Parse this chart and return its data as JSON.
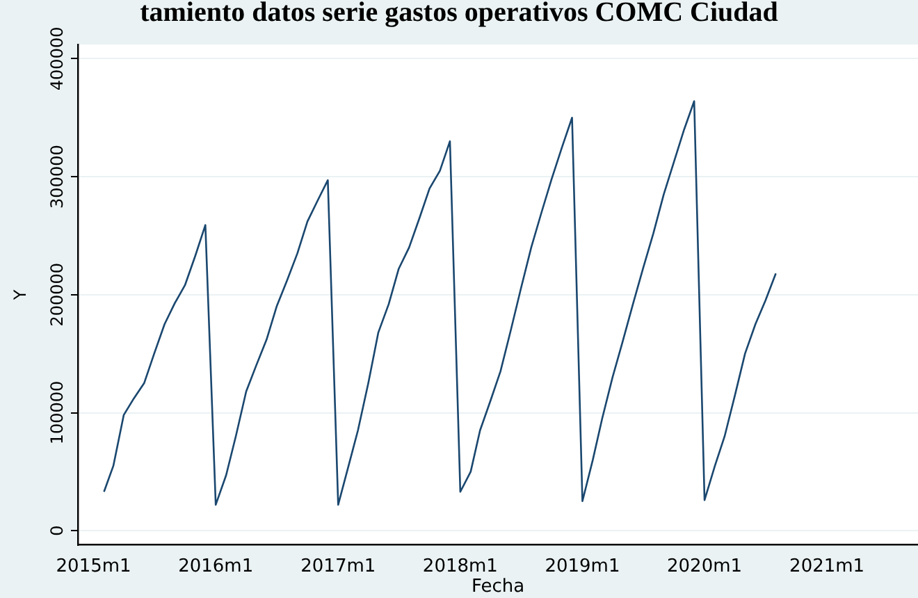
{
  "chart_data": {
    "type": "line",
    "title": "tamiento datos serie gastos operativos COMC Ciudad",
    "xlabel": "Fecha",
    "ylabel": "Y",
    "x": [
      "2015-02",
      "2015-03",
      "2015-04",
      "2015-05",
      "2015-06",
      "2015-07",
      "2015-08",
      "2015-09",
      "2015-10",
      "2015-11",
      "2015-12",
      "2016-01",
      "2016-02",
      "2016-03",
      "2016-04",
      "2016-05",
      "2016-06",
      "2016-07",
      "2016-08",
      "2016-09",
      "2016-10",
      "2016-11",
      "2016-12",
      "2017-01",
      "2017-02",
      "2017-03",
      "2017-04",
      "2017-05",
      "2017-06",
      "2017-07",
      "2017-08",
      "2017-09",
      "2017-10",
      "2017-11",
      "2017-12",
      "2018-01",
      "2018-02",
      "2018-03",
      "2018-04",
      "2018-05",
      "2018-06",
      "2018-07",
      "2018-08",
      "2018-09",
      "2018-10",
      "2018-11",
      "2018-12",
      "2019-01",
      "2019-02",
      "2019-03",
      "2019-04",
      "2019-05",
      "2019-06",
      "2019-07",
      "2019-08",
      "2019-09",
      "2019-10",
      "2019-11",
      "2019-12",
      "2020-01",
      "2020-02",
      "2020-03",
      "2020-04",
      "2020-05",
      "2020-06",
      "2020-07",
      "2020-08"
    ],
    "series": [
      {
        "color": "#1a476f",
        "values": [
          33000,
          55000,
          98000,
          112000,
          125000,
          150000,
          175000,
          193000,
          208000,
          233000,
          259000,
          22000,
          47000,
          80000,
          118000,
          140000,
          162000,
          190000,
          212000,
          235000,
          262000,
          280000,
          297000,
          22000,
          55000,
          85000,
          125000,
          168000,
          192000,
          222000,
          240000,
          265000,
          290000,
          305000,
          330000,
          33000,
          50000,
          85000,
          110000,
          135000,
          170000,
          205000,
          240000,
          270000,
          298000,
          325000,
          350000,
          25000,
          60000,
          95000,
          130000,
          160000,
          192000,
          222000,
          252000,
          285000,
          312000,
          340000,
          364000,
          26000,
          55000,
          80000,
          115000,
          150000,
          175000,
          195000,
          218000
        ]
      }
    ],
    "xlim": [
      "2014-11-15",
      "2021-09-30"
    ],
    "xticks": [
      {
        "value": "2015-01",
        "label": "2015m1"
      },
      {
        "value": "2016-01",
        "label": "2016m1"
      },
      {
        "value": "2017-01",
        "label": "2017m1"
      },
      {
        "value": "2018-01",
        "label": "2018m1"
      },
      {
        "value": "2019-01",
        "label": "2019m1"
      },
      {
        "value": "2020-01",
        "label": "2020m1"
      },
      {
        "value": "2021-01",
        "label": "2021m1"
      }
    ],
    "ylim": [
      -12000,
      412000
    ],
    "yticks": [
      0,
      100000,
      200000,
      300000,
      400000
    ],
    "grid": "y",
    "legend": false,
    "marker": "none",
    "line_style": "solid"
  }
}
